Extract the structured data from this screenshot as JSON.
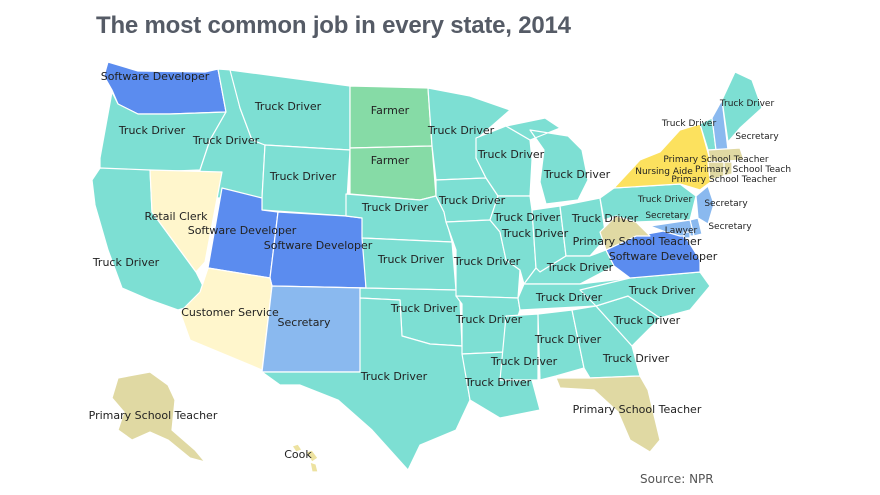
{
  "title": "The most common job in every state, 2014",
  "source": "Source: NPR",
  "colors": {
    "truck_driver": "#7ddfd3",
    "software_developer": "#5b8cef",
    "farmer": "#86dba6",
    "retail_clerk": "#fff6cc",
    "customer_service": "#fff6cc",
    "secretary": "#8ab9ef",
    "primary_school_teacher": "#e0d9a3",
    "nursing_aide": "#fce15e",
    "cook": "#ede2a0",
    "lawyer": "#8ab9ef",
    "border": "#ffffff"
  },
  "states": [
    {
      "id": "WA",
      "job": "Software Developer"
    },
    {
      "id": "OR",
      "job": "Truck Driver"
    },
    {
      "id": "CA",
      "job": "Truck Driver"
    },
    {
      "id": "ID",
      "job": "Truck Driver"
    },
    {
      "id": "NV",
      "job": "Retail Clerk"
    },
    {
      "id": "MT",
      "job": "Truck Driver"
    },
    {
      "id": "WY",
      "job": "Truck Driver"
    },
    {
      "id": "UT",
      "job": "Software Developer"
    },
    {
      "id": "CO",
      "job": "Software Developer"
    },
    {
      "id": "AZ",
      "job": "Customer Service"
    },
    {
      "id": "NM",
      "job": "Secretary"
    },
    {
      "id": "ND",
      "job": "Farmer"
    },
    {
      "id": "SD",
      "job": "Farmer"
    },
    {
      "id": "NE",
      "job": "Truck Driver"
    },
    {
      "id": "KS",
      "job": "Truck Driver"
    },
    {
      "id": "OK",
      "job": "Truck Driver"
    },
    {
      "id": "TX",
      "job": "Truck Driver"
    },
    {
      "id": "MN",
      "job": "Truck Driver"
    },
    {
      "id": "IA",
      "job": "Truck Driver"
    },
    {
      "id": "MO",
      "job": "Truck Driver"
    },
    {
      "id": "AR",
      "job": "Truck Driver"
    },
    {
      "id": "LA",
      "job": "Truck Driver"
    },
    {
      "id": "WI",
      "job": "Truck Driver"
    },
    {
      "id": "IL",
      "job": "Truck Driver"
    },
    {
      "id": "MI",
      "job": "Truck Driver"
    },
    {
      "id": "IN",
      "job": "Truck Driver"
    },
    {
      "id": "OH",
      "job": "Truck Driver"
    },
    {
      "id": "KY",
      "job": "Truck Driver"
    },
    {
      "id": "TN",
      "job": "Truck Driver"
    },
    {
      "id": "MS",
      "job": "Truck Driver"
    },
    {
      "id": "AL",
      "job": "Truck Driver"
    },
    {
      "id": "GA",
      "job": "Truck Driver"
    },
    {
      "id": "FL",
      "job": "Primary School Teacher"
    },
    {
      "id": "SC",
      "job": "Truck Driver"
    },
    {
      "id": "NC",
      "job": "Truck Driver"
    },
    {
      "id": "VA",
      "job": "Software Developer"
    },
    {
      "id": "WV",
      "job": "Primary School Teacher"
    },
    {
      "id": "PA",
      "job": "Truck Driver"
    },
    {
      "id": "NY",
      "job": "Nursing Aide"
    },
    {
      "id": "VT",
      "job": "Truck Driver"
    },
    {
      "id": "NH",
      "job": "Secretary"
    },
    {
      "id": "ME",
      "job": "Truck Driver"
    },
    {
      "id": "MA",
      "job": "Primary School Teacher"
    },
    {
      "id": "RI",
      "job": "Primary School Teacher"
    },
    {
      "id": "CT",
      "job": "Primary School Teacher"
    },
    {
      "id": "NJ",
      "job": "Secretary"
    },
    {
      "id": "DE",
      "job": "Secretary"
    },
    {
      "id": "MD",
      "job": "Secretary"
    },
    {
      "id": "DC",
      "job": "Lawyer"
    },
    {
      "id": "AK",
      "job": "Primary School Teacher"
    },
    {
      "id": "HI",
      "job": "Cook"
    }
  ],
  "labels": [
    {
      "state": "WA",
      "text": "Software Developer"
    },
    {
      "state": "OR",
      "text": "Truck Driver"
    },
    {
      "state": "ID",
      "text": "Truck Driver"
    },
    {
      "state": "MT",
      "text": "Truck Driver"
    },
    {
      "state": "ND",
      "text": "Farmer"
    },
    {
      "state": "SD",
      "text": "Farmer"
    },
    {
      "state": "WY",
      "text": "Truck Driver"
    },
    {
      "state": "NV",
      "text": "Retail Clerk"
    },
    {
      "state": "UT",
      "text": "Software Developer"
    },
    {
      "state": "CO",
      "text": "Software Developer"
    },
    {
      "state": "CA",
      "text": "Truck Driver"
    },
    {
      "state": "AZ",
      "text": "Customer Service"
    },
    {
      "state": "NM",
      "text": "Secretary"
    },
    {
      "state": "NE",
      "text": "Truck Driver"
    },
    {
      "state": "KS",
      "text": "Truck Driver"
    },
    {
      "state": "OK",
      "text": "Truck Driver"
    },
    {
      "state": "TX",
      "text": "Truck Driver"
    },
    {
      "state": "MN",
      "text": "Truck Driver"
    },
    {
      "state": "WI",
      "text": "Truck Driver"
    },
    {
      "state": "MI",
      "text": "Truck Driver"
    },
    {
      "state": "IA",
      "text": "Truck Driver"
    },
    {
      "state": "IL",
      "text": "Truck Driver"
    },
    {
      "state": "IN",
      "text": "Truck Driver"
    },
    {
      "state": "OH",
      "text": "Truck Driver"
    },
    {
      "state": "MO",
      "text": "Truck Driver"
    },
    {
      "state": "KY",
      "text": "Truck Driver"
    },
    {
      "state": "TN",
      "text": "Truck Driver"
    },
    {
      "state": "AR",
      "text": "Truck Driver"
    },
    {
      "state": "MS",
      "text": "Truck Driver"
    },
    {
      "state": "AL",
      "text": "Truck Driver"
    },
    {
      "state": "LA",
      "text": "Truck Driver"
    },
    {
      "state": "GA",
      "text": "Truck Driver"
    },
    {
      "state": "SC",
      "text": "Truck Driver"
    },
    {
      "state": "NC",
      "text": "Truck Driver"
    },
    {
      "state": "VA",
      "text": "Software Developer"
    },
    {
      "state": "WV",
      "text": "Primary School Teacher"
    },
    {
      "state": "FL",
      "text": "Primary School Teacher"
    },
    {
      "state": "AK",
      "text": "Primary School Teacher"
    },
    {
      "state": "HI",
      "text": "Cook"
    },
    {
      "state": "PA",
      "text": "Truck Driver"
    },
    {
      "state": "NY",
      "text": "Nursing Aide"
    },
    {
      "state": "MA",
      "text": "Primary School Teacher"
    },
    {
      "state": "RI",
      "text": "Primary School Teach"
    },
    {
      "state": "CT",
      "text": "Primary School Teacher"
    },
    {
      "state": "VT",
      "text": "Truck Driver"
    },
    {
      "state": "ME",
      "text": "Truck Driver"
    },
    {
      "state": "NH",
      "text": "Secretary"
    },
    {
      "state": "NJ",
      "text": "Secretary"
    },
    {
      "state": "DE",
      "text": "Secretary"
    },
    {
      "state": "MD",
      "text": "Secretary"
    },
    {
      "state": "DC",
      "text": "Lawyer"
    }
  ]
}
